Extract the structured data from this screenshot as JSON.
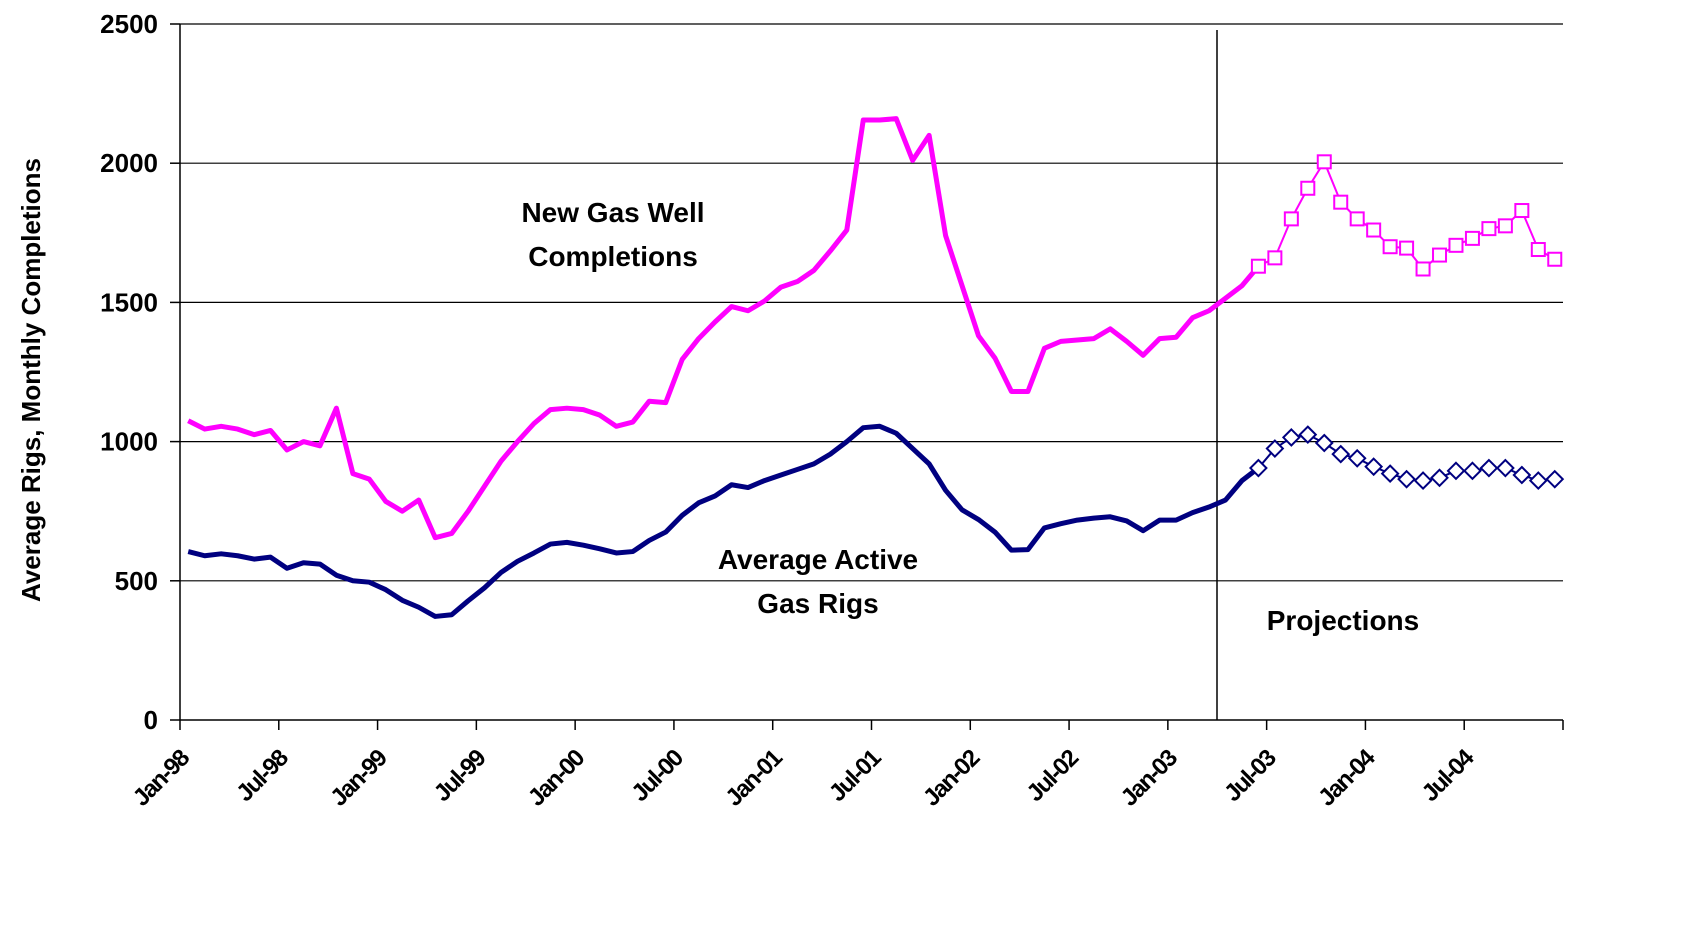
{
  "chart_data": {
    "type": "line",
    "categories": [
      "Jan-98",
      null,
      null,
      null,
      null,
      null,
      "Jul-98",
      null,
      null,
      null,
      null,
      null,
      "Jan-99",
      null,
      null,
      null,
      null,
      null,
      "Jul-99",
      null,
      null,
      null,
      null,
      null,
      "Jan-00",
      null,
      null,
      null,
      null,
      null,
      "Jul-00",
      null,
      null,
      null,
      null,
      null,
      "Jan-01",
      null,
      null,
      null,
      null,
      null,
      "Jul-01",
      null,
      null,
      null,
      null,
      null,
      "Jan-02",
      null,
      null,
      null,
      null,
      null,
      "Jul-02",
      null,
      null,
      null,
      null,
      null,
      "Jan-03",
      null,
      null,
      null,
      null,
      null,
      "Jul-03",
      null,
      null,
      null,
      null,
      null,
      "Jan-04",
      null,
      null,
      null,
      null,
      null,
      "Jul-04",
      null,
      null,
      null,
      null,
      null
    ],
    "y_label": "Average Rigs, Monthly Completions",
    "ylim": [
      0,
      2500
    ],
    "yticks": [
      0,
      500,
      1000,
      1500,
      2000,
      2500
    ],
    "grid": true,
    "annotations": [
      {
        "text": [
          "New Gas Well",
          "Completions"
        ]
      },
      {
        "text": [
          "Average Active",
          "Gas Rigs"
        ]
      },
      {
        "text": [
          "Projections"
        ]
      }
    ],
    "series": [
      {
        "color": "#ff00ff",
        "values": [
          1075,
          1045,
          1055,
          1045,
          1025,
          1040,
          970,
          1000,
          985,
          1120,
          885,
          865,
          785,
          750,
          790,
          655,
          670,
          750,
          840,
          930,
          1000,
          1065,
          1115,
          1120,
          1115,
          1095,
          1055,
          1070,
          1145,
          1140,
          1295,
          1370,
          1430,
          1485,
          1470,
          1505,
          1555,
          1575,
          1615,
          1685,
          1760,
          2155,
          2155,
          2160,
          2010,
          2100,
          1740,
          1560,
          1380,
          1300,
          1180,
          1180,
          1335,
          1360,
          1365,
          1370,
          1405,
          1360,
          1310,
          1370,
          1375,
          1445,
          1470,
          1515,
          1560,
          1630,
          null,
          null,
          null,
          null,
          null,
          null,
          null,
          null,
          null,
          null,
          null,
          null,
          null,
          null,
          null,
          null,
          null,
          null
        ]
      },
      {
        "color": "#ff00ff",
        "marker": "square",
        "values": [
          null,
          null,
          null,
          null,
          null,
          null,
          null,
          null,
          null,
          null,
          null,
          null,
          null,
          null,
          null,
          null,
          null,
          null,
          null,
          null,
          null,
          null,
          null,
          null,
          null,
          null,
          null,
          null,
          null,
          null,
          null,
          null,
          null,
          null,
          null,
          null,
          null,
          null,
          null,
          null,
          null,
          null,
          null,
          null,
          null,
          null,
          null,
          null,
          null,
          null,
          null,
          null,
          null,
          null,
          null,
          null,
          null,
          null,
          null,
          null,
          null,
          null,
          null,
          null,
          null,
          1630,
          1660,
          1800,
          1910,
          2005,
          1860,
          1800,
          1760,
          1700,
          1695,
          1620,
          1670,
          1705,
          1730,
          1765,
          1775,
          1830,
          1690,
          1655
        ]
      },
      {
        "color": "#000080",
        "values": [
          605,
          590,
          597,
          590,
          578,
          585,
          545,
          565,
          560,
          520,
          500,
          495,
          468,
          430,
          405,
          372,
          378,
          428,
          475,
          530,
          570,
          600,
          632,
          638,
          628,
          615,
          600,
          605,
          645,
          675,
          735,
          780,
          805,
          845,
          835,
          860,
          880,
          900,
          920,
          955,
          1000,
          1050,
          1055,
          1030,
          975,
          920,
          825,
          755,
          720,
          675,
          610,
          612,
          690,
          705,
          718,
          725,
          730,
          715,
          680,
          718,
          718,
          745,
          765,
          790,
          860,
          905,
          null,
          null,
          null,
          null,
          null,
          null,
          null,
          null,
          null,
          null,
          null,
          null,
          null,
          null,
          null,
          null,
          null,
          null
        ]
      },
      {
        "color": "#000080",
        "marker": "diamond",
        "values": [
          null,
          null,
          null,
          null,
          null,
          null,
          null,
          null,
          null,
          null,
          null,
          null,
          null,
          null,
          null,
          null,
          null,
          null,
          null,
          null,
          null,
          null,
          null,
          null,
          null,
          null,
          null,
          null,
          null,
          null,
          null,
          null,
          null,
          null,
          null,
          null,
          null,
          null,
          null,
          null,
          null,
          null,
          null,
          null,
          null,
          null,
          null,
          null,
          null,
          null,
          null,
          null,
          null,
          null,
          null,
          null,
          null,
          null,
          null,
          null,
          null,
          null,
          null,
          null,
          null,
          905,
          975,
          1015,
          1025,
          995,
          955,
          940,
          910,
          885,
          865,
          860,
          870,
          895,
          895,
          905,
          905,
          880,
          860,
          865
        ]
      }
    ]
  }
}
